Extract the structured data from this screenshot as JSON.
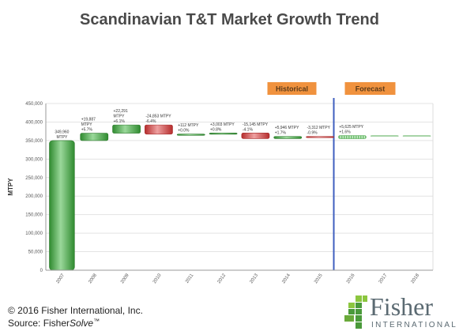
{
  "title": "Scandinavian T&T Market Growth Trend",
  "footer": {
    "copyright": "© 2016 Fisher International, Inc.",
    "source_prefix": "Source: Fisher",
    "source_italic": "Solve",
    "source_tm": "™"
  },
  "logo": {
    "word": "Fisher",
    "sub": "INTERNATIONAL"
  },
  "colors": {
    "increase": "#3f9f3f",
    "decrease": "#c93a3a",
    "forecast": "#8fcf8f",
    "divider": "#3f5fbf",
    "phase_box": "#f0923e"
  },
  "chart_data": {
    "type": "bar",
    "ylabel": "MTPY",
    "ylim": [
      0,
      450000
    ],
    "yticks": [
      0,
      50000,
      100000,
      150000,
      200000,
      250000,
      300000,
      350000,
      400000,
      450000
    ],
    "ytick_labels": [
      "0",
      "50,000",
      "100,000",
      "150,000",
      "200,000",
      "250,000",
      "300,000",
      "350,000",
      "400,000",
      "450,000"
    ],
    "grid": true,
    "phases": [
      {
        "label": "Historical",
        "years": "2007-2015"
      },
      {
        "label": "Forecast",
        "years": "2016-2018"
      }
    ],
    "bars": [
      {
        "year": "2007",
        "kind": "base",
        "start": 0,
        "end": 349960,
        "label1": "349,960",
        "label2": "MTPY"
      },
      {
        "year": "2008",
        "kind": "increase",
        "start": 349960,
        "end": 369847,
        "label1": "+19,887",
        "label2": "MTPY",
        "label3": "+5.7%"
      },
      {
        "year": "2009",
        "kind": "increase",
        "start": 369847,
        "end": 392138,
        "label1": "+22,291",
        "label2": "MTPY",
        "label3": "+6.1%"
      },
      {
        "year": "2010",
        "kind": "decrease",
        "start": 392138,
        "end": 367285,
        "label1": "-24,853 MTPY",
        "label2": "-6.4%"
      },
      {
        "year": "2011",
        "kind": "increase",
        "start": 367285,
        "end": 367397,
        "label1": "+112 MTPY",
        "label2": "+0.0%"
      },
      {
        "year": "2012",
        "kind": "increase",
        "start": 367397,
        "end": 370400,
        "label1": "+3,003 MTPY",
        "label2": "+0.8%"
      },
      {
        "year": "2013",
        "kind": "decrease",
        "start": 370400,
        "end": 355255,
        "label1": "-15,145 MTPY",
        "label2": "-4.1%"
      },
      {
        "year": "2014",
        "kind": "increase",
        "start": 355255,
        "end": 361201,
        "label1": "+5,946 MTPY",
        "label2": "+1.7%"
      },
      {
        "year": "2015",
        "kind": "decrease",
        "start": 361201,
        "end": 357889,
        "label1": "-3,312 MTPY",
        "label2": "-0.9%"
      },
      {
        "year": "2016",
        "kind": "forecast",
        "start": 357889,
        "end": 363514,
        "label1": "+5,625 MTPY",
        "label2": "+1.6%"
      },
      {
        "year": "2017",
        "kind": "flat",
        "start": 363514,
        "end": 363514
      },
      {
        "year": "2018",
        "kind": "flat",
        "start": 363514,
        "end": 363514
      }
    ]
  }
}
